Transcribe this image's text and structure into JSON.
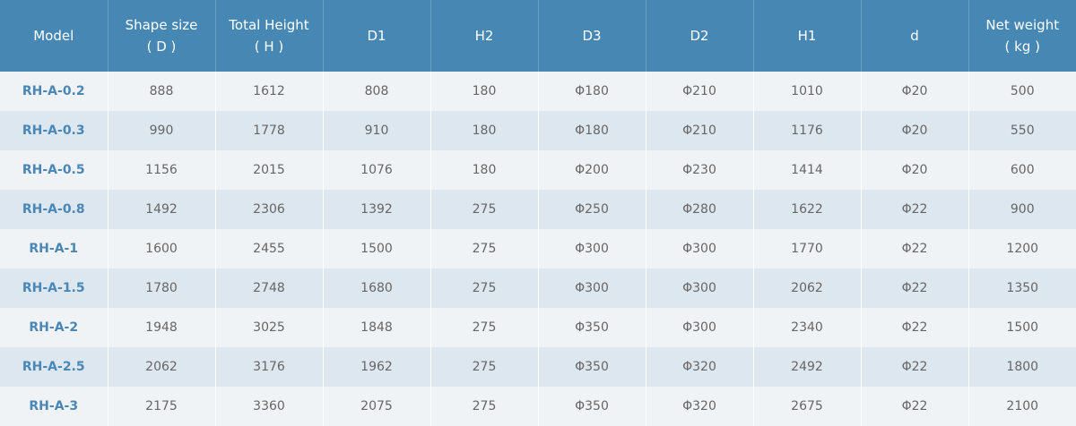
{
  "table": {
    "headers": [
      {
        "line1": "Model",
        "line2": ""
      },
      {
        "line1": "Shape size",
        "line2": "( D )"
      },
      {
        "line1": "Total Height",
        "line2": "( H )"
      },
      {
        "line1": "D1",
        "line2": ""
      },
      {
        "line1": "H2",
        "line2": ""
      },
      {
        "line1": "D3",
        "line2": ""
      },
      {
        "line1": "D2",
        "line2": ""
      },
      {
        "line1": "H1",
        "line2": ""
      },
      {
        "line1": "d",
        "line2": ""
      },
      {
        "line1": "Net weight",
        "line2": "( kg )"
      }
    ],
    "rows": [
      [
        "RH-A-0.2",
        "888",
        "1612",
        "808",
        "180",
        "Φ180",
        "Φ210",
        "1010",
        "Φ20",
        "500"
      ],
      [
        "RH-A-0.3",
        "990",
        "1778",
        "910",
        "180",
        "Φ180",
        "Φ210",
        "1176",
        "Φ20",
        "550"
      ],
      [
        "RH-A-0.5",
        "1156",
        "2015",
        "1076",
        "180",
        "Φ200",
        "Φ230",
        "1414",
        "Φ20",
        "600"
      ],
      [
        "RH-A-0.8",
        "1492",
        "2306",
        "1392",
        "275",
        "Φ250",
        "Φ280",
        "1622",
        "Φ22",
        "900"
      ],
      [
        "RH-A-1",
        "1600",
        "2455",
        "1500",
        "275",
        "Φ300",
        "Φ300",
        "1770",
        "Φ22",
        "1200"
      ],
      [
        "RH-A-1.5",
        "1780",
        "2748",
        "1680",
        "275",
        "Φ300",
        "Φ300",
        "2062",
        "Φ22",
        "1350"
      ],
      [
        "RH-A-2",
        "1948",
        "3025",
        "1848",
        "275",
        "Φ350",
        "Φ300",
        "2340",
        "Φ22",
        "1500"
      ],
      [
        "RH-A-2.5",
        "2062",
        "3176",
        "1962",
        "275",
        "Φ350",
        "Φ320",
        "2492",
        "Φ22",
        "1800"
      ],
      [
        "RH-A-3",
        "2175",
        "3360",
        "2075",
        "275",
        "Φ350",
        "Φ320",
        "2675",
        "Φ22",
        "2100"
      ]
    ]
  },
  "colors": {
    "header_bg": "#4787b4",
    "row_light": "#eff3f6",
    "row_dark": "#dde7ef",
    "model_text": "#4a87b5",
    "cell_text": "#666666"
  }
}
